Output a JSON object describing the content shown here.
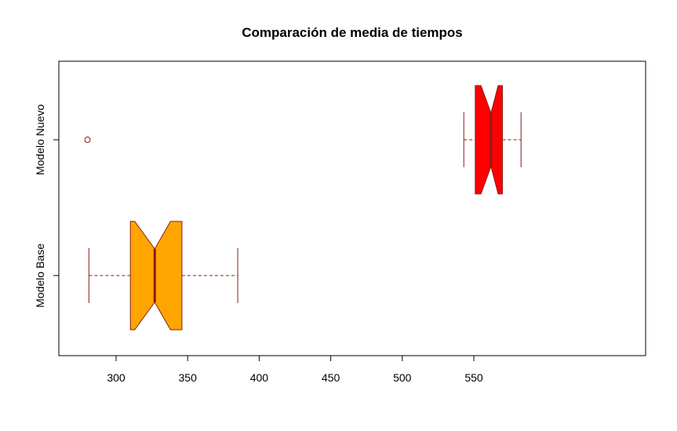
{
  "chart_data": {
    "type": "boxplot",
    "title": "Comparación de media de tiempos",
    "xlabel": "",
    "ylabel": "",
    "orientation": "horizontal",
    "notched": true,
    "xlim": [
      270,
      587
    ],
    "x_ticks": [
      300,
      350,
      400,
      450,
      500,
      550
    ],
    "x_tick_labels": [
      "300",
      "350",
      "400",
      "450",
      "500",
      "550"
    ],
    "border_color": "#8B1A1A",
    "series": [
      {
        "name": "Modelo Base",
        "color": "#FFA500",
        "whisker_low": 281,
        "q1": 310,
        "median": 327,
        "q3": 346,
        "whisker_high": 385,
        "notch_low": 313,
        "notch_high": 338,
        "outliers": []
      },
      {
        "name": "Modelo Nuevo",
        "color": "#FF0000",
        "whisker_low": 543,
        "q1": 551,
        "median": 562,
        "q3": 570,
        "whisker_high": 583,
        "notch_low": 555,
        "notch_high": 567,
        "outliers": [
          280
        ]
      }
    ]
  }
}
